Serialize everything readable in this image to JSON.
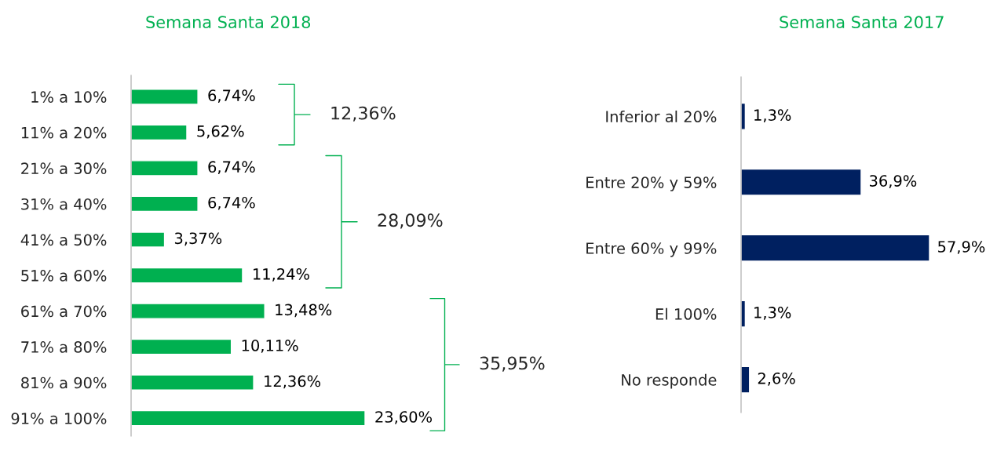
{
  "chart_data": [
    {
      "type": "bar",
      "orientation": "horizontal",
      "title": "Semana Santa 2018",
      "color": "#00b050",
      "tick_labels": "y",
      "categories": [
        "1% a 10%",
        "11% a 20%",
        "21% a 30%",
        "31% a 40%",
        "41% a 50%",
        "51% a 60%",
        "61% a 70%",
        "71% a 80%",
        "81% a 90%",
        "91% a 100%"
      ],
      "values": [
        6.74,
        5.62,
        6.74,
        6.74,
        3.37,
        11.24,
        13.48,
        10.11,
        12.36,
        23.6
      ],
      "value_labels": [
        "6,74%",
        "5,62%",
        "6,74%",
        "6,74%",
        "3,37%",
        "11,24%",
        "13,48%",
        "10,11%",
        "12,36%",
        "23,60%"
      ],
      "annotations": [
        "12,36%",
        "28,09%",
        "35,95%"
      ]
    },
    {
      "type": "bar",
      "orientation": "horizontal",
      "title": "Semana Santa 2017",
      "color": "#002060",
      "tick_labels": "y",
      "categories": [
        "Inferior al 20%",
        "Entre 20% y 59%",
        "Entre 60% y 99%",
        "El 100%",
        "No responde"
      ],
      "values": [
        1.3,
        36.9,
        57.9,
        1.3,
        2.6
      ],
      "value_labels": [
        "1,3%",
        "36,9%",
        "57,9%",
        "1,3%",
        "2,6%"
      ]
    }
  ]
}
